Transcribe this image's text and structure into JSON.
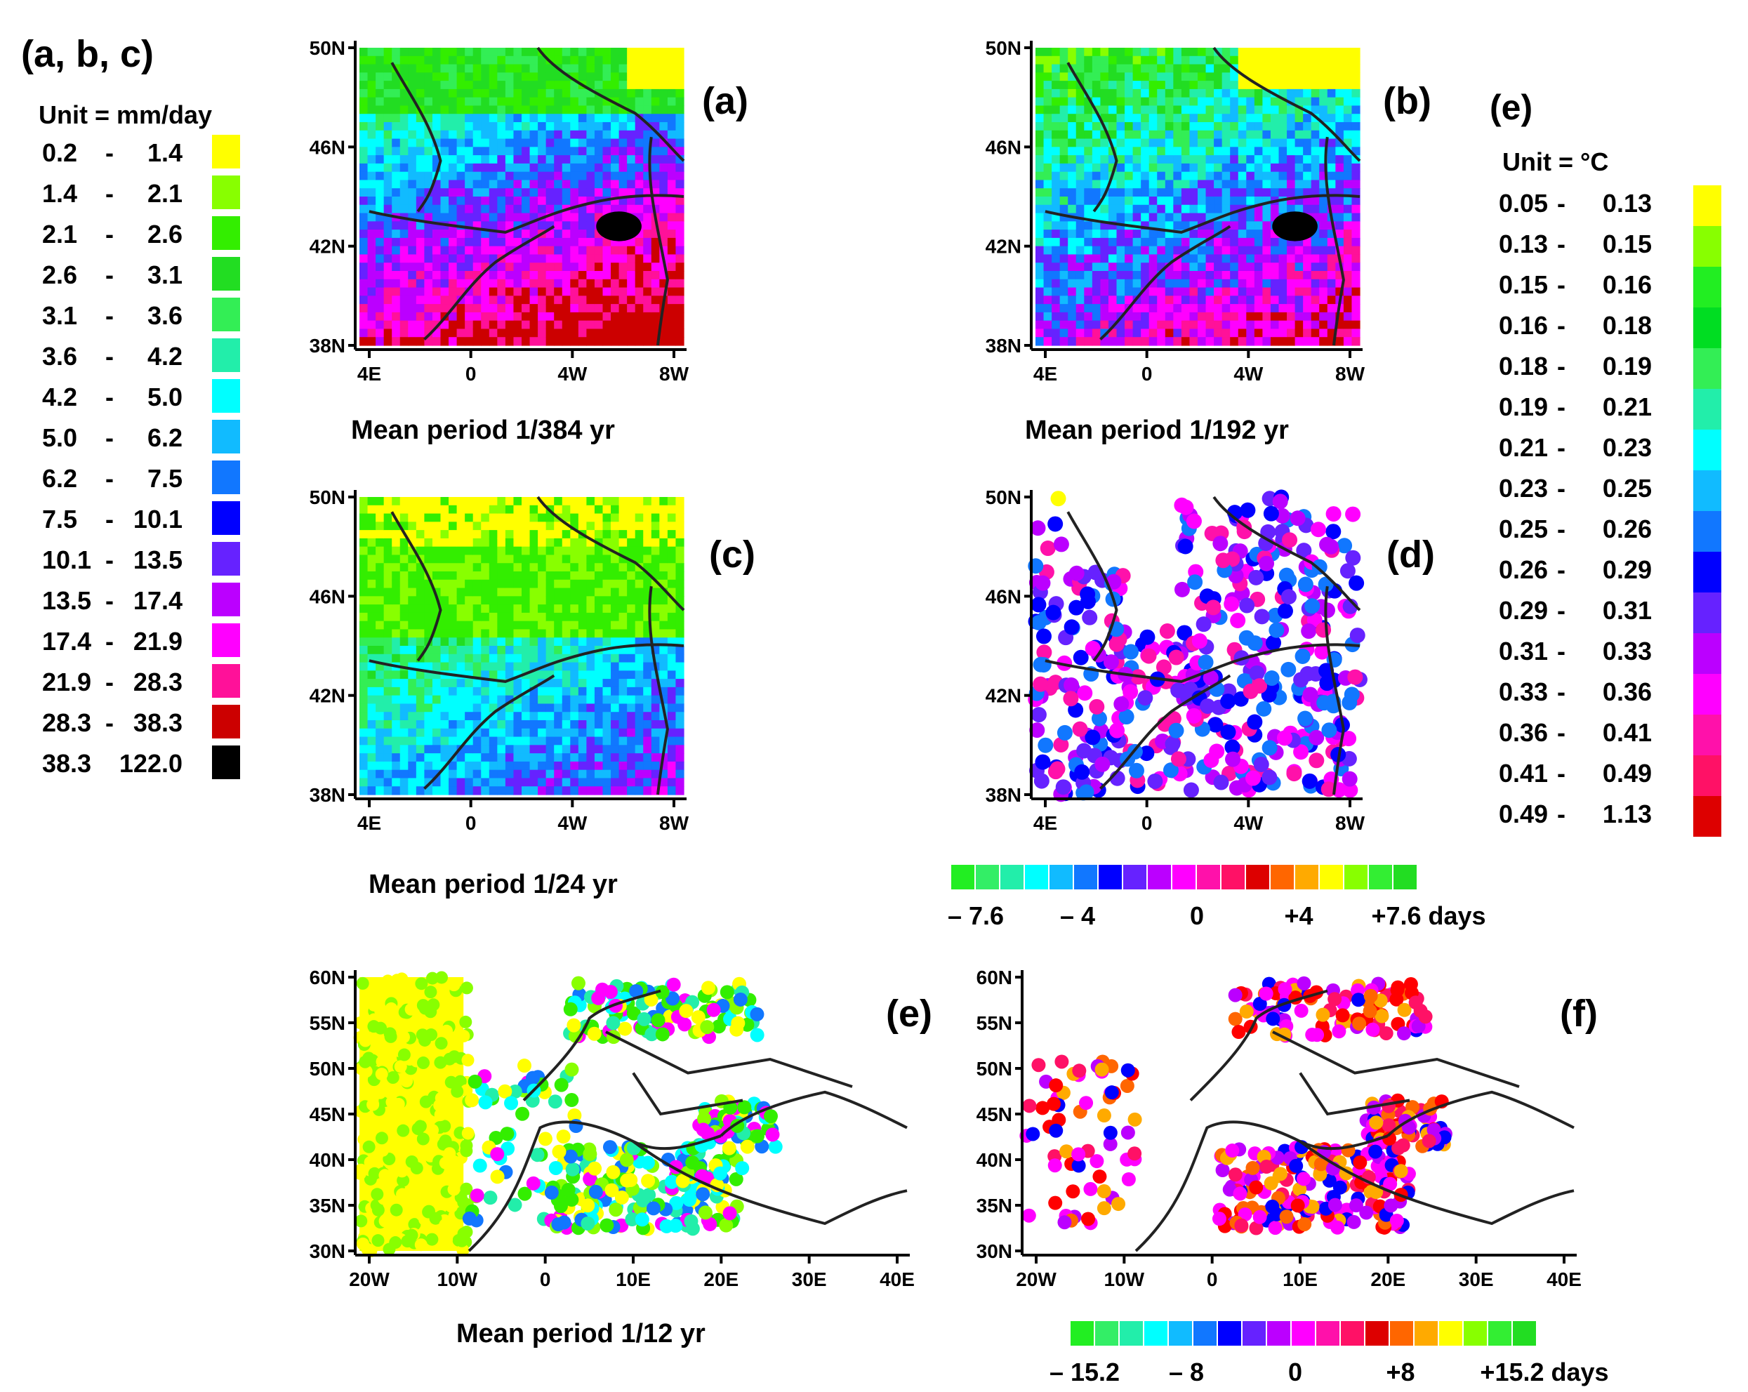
{
  "figure": {
    "left_legend": {
      "title": "(a, b, c)",
      "unit": "Unit = mm/day",
      "rows": [
        {
          "lo": "0.2",
          "hi": "1.4",
          "color": "#ffff00"
        },
        {
          "lo": "1.4",
          "hi": "2.1",
          "color": "#88ff00"
        },
        {
          "lo": "2.1",
          "hi": "2.6",
          "color": "#33ee00"
        },
        {
          "lo": "2.6",
          "hi": "3.1",
          "color": "#22dd22"
        },
        {
          "lo": "3.1",
          "hi": "3.6",
          "color": "#33ee55"
        },
        {
          "lo": "3.6",
          "hi": "4.2",
          "color": "#22eeaa"
        },
        {
          "lo": "4.2",
          "hi": "5.0",
          "color": "#00ffff"
        },
        {
          "lo": "5.0",
          "hi": "6.2",
          "color": "#11bbff"
        },
        {
          "lo": "6.2",
          "hi": "7.5",
          "color": "#1177ff"
        },
        {
          "lo": "7.5",
          "hi": "10.1",
          "color": "#0000ff"
        },
        {
          "lo": "10.1",
          "hi": "13.5",
          "color": "#6622ff"
        },
        {
          "lo": "13.5",
          "hi": "17.4",
          "color": "#bb00ff"
        },
        {
          "lo": "17.4",
          "hi": "21.9",
          "color": "#ff00ff"
        },
        {
          "lo": "21.9",
          "hi": "28.3",
          "color": "#ff1199"
        },
        {
          "lo": "28.3",
          "hi": "38.3",
          "color": "#cc0000"
        },
        {
          "lo": "38.3",
          "hi": "122.0",
          "color": "#000000"
        }
      ]
    },
    "right_legend": {
      "title": "(e)",
      "unit": "Unit = °C",
      "rows": [
        {
          "lo": "0.05",
          "hi": "0.13",
          "color": "#ffff00"
        },
        {
          "lo": "0.13",
          "hi": "0.15",
          "color": "#88ff00"
        },
        {
          "lo": "0.15",
          "hi": "0.16",
          "color": "#22ee22"
        },
        {
          "lo": "0.16",
          "hi": "0.18",
          "color": "#00dd22"
        },
        {
          "lo": "0.18",
          "hi": "0.19",
          "color": "#33ee55"
        },
        {
          "lo": "0.19",
          "hi": "0.21",
          "color": "#22eeaa"
        },
        {
          "lo": "0.21",
          "hi": "0.23",
          "color": "#00ffff"
        },
        {
          "lo": "0.23",
          "hi": "0.25",
          "color": "#11bbff"
        },
        {
          "lo": "0.25",
          "hi": "0.26",
          "color": "#1177ff"
        },
        {
          "lo": "0.26",
          "hi": "0.29",
          "color": "#0000ff"
        },
        {
          "lo": "0.29",
          "hi": "0.31",
          "color": "#6622ff"
        },
        {
          "lo": "0.31",
          "hi": "0.33",
          "color": "#bb00ff"
        },
        {
          "lo": "0.33",
          "hi": "0.36",
          "color": "#ff00ff"
        },
        {
          "lo": "0.36",
          "hi": "0.41",
          "color": "#ff11aa"
        },
        {
          "lo": "0.41",
          "hi": "0.49",
          "color": "#ff1166"
        },
        {
          "lo": "0.49",
          "hi": "1.13",
          "color": "#dd0000"
        }
      ]
    },
    "panels": [
      {
        "id": "a",
        "letter": "(a)",
        "caption": "Mean period  1/384 yr",
        "kind": "iberia",
        "yticks": [
          "50N",
          "46N",
          "42N",
          "38N"
        ],
        "xticks": [
          "4E",
          "0",
          "4W",
          "8W"
        ]
      },
      {
        "id": "b",
        "letter": "(b)",
        "caption": "Mean period  1/192 yr",
        "kind": "iberia",
        "yticks": [
          "50N",
          "46N",
          "42N",
          "38N"
        ],
        "xticks": [
          "4E",
          "0",
          "4W",
          "8W"
        ]
      },
      {
        "id": "c",
        "letter": "(c)",
        "caption": "Mean period 1/24 yr",
        "kind": "iberia",
        "yticks": [
          "50N",
          "46N",
          "42N",
          "38N"
        ],
        "xticks": [
          "4E",
          "0",
          "4W",
          "8W"
        ]
      },
      {
        "id": "d",
        "letter": "(d)",
        "caption": "",
        "kind": "iberia",
        "yticks": [
          "50N",
          "46N",
          "42N",
          "38N"
        ],
        "xticks": [
          "4E",
          "0",
          "4W",
          "8W"
        ]
      },
      {
        "id": "e",
        "letter": "(e)",
        "caption": "Mean period 1/12 yr",
        "kind": "europe",
        "yticks": [
          "60N",
          "55N",
          "50N",
          "45N",
          "40N",
          "35N",
          "30N"
        ],
        "xticks": [
          "20W",
          "10W",
          "0",
          "10E",
          "20E",
          "30E",
          "40E"
        ]
      },
      {
        "id": "f",
        "letter": "(f)",
        "caption": "",
        "kind": "europe",
        "yticks": [
          "60N",
          "55N",
          "50N",
          "45N",
          "40N",
          "35N",
          "30N"
        ],
        "xticks": [
          "20W",
          "10W",
          "0",
          "10E",
          "20E",
          "30E",
          "40E"
        ]
      }
    ],
    "colorbar_d": {
      "colors": [
        "#22ee22",
        "#33ee66",
        "#22eeaa",
        "#00ffff",
        "#11bbff",
        "#1177ff",
        "#0000ff",
        "#6622ff",
        "#bb00ff",
        "#ff00ff",
        "#ff11aa",
        "#ff1166",
        "#dd0000",
        "#ff6600",
        "#ffaa00",
        "#ffff00",
        "#88ff00",
        "#33ee33",
        "#22dd22"
      ],
      "labels": [
        "– 7.6",
        "– 4",
        "0",
        "+4",
        "+7.6 days"
      ]
    },
    "colorbar_f": {
      "colors": [
        "#22ee22",
        "#33ee66",
        "#22eeaa",
        "#00ffff",
        "#11bbff",
        "#1177ff",
        "#0000ff",
        "#6622ff",
        "#bb00ff",
        "#ff00ff",
        "#ff11aa",
        "#ff1166",
        "#dd0000",
        "#ff6600",
        "#ffaa00",
        "#ffff00",
        "#88ff00",
        "#33ee33",
        "#22dd22"
      ],
      "labels": [
        "– 15.2",
        "– 8",
        "0",
        "+8",
        "+15.2 days"
      ]
    }
  }
}
